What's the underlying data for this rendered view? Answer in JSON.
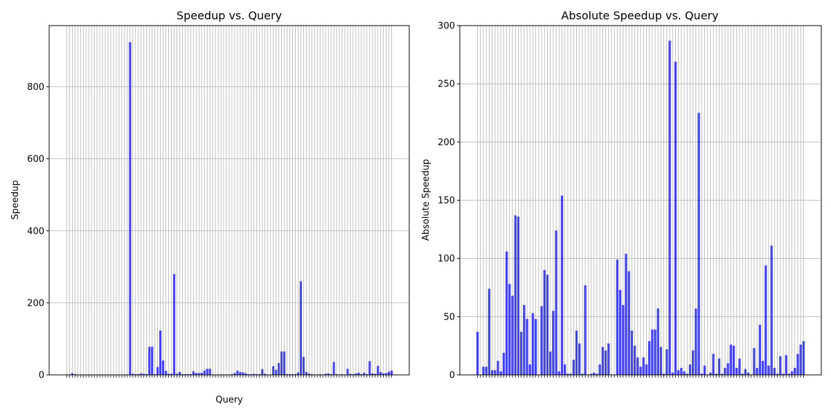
{
  "chart_data": [
    {
      "type": "bar",
      "title": "Speedup vs. Query",
      "xlabel": "Query",
      "ylabel": "Speedup",
      "ylim": [
        0,
        970
      ],
      "yticks": [
        0,
        200,
        400,
        600,
        800
      ],
      "grid": true,
      "bar_color": "#0000ff",
      "grid_color": "#b0b0b0",
      "values": [
        1,
        1,
        5,
        2,
        1,
        1,
        1,
        1,
        1,
        1,
        1,
        1,
        1,
        1,
        1,
        1,
        1,
        1,
        1,
        1,
        1,
        1,
        1,
        924,
        3,
        2,
        2,
        4,
        3,
        2,
        78,
        78,
        2,
        22,
        123,
        40,
        11,
        3,
        3,
        280,
        3,
        8,
        2,
        2,
        2,
        2,
        10,
        5,
        5,
        6,
        12,
        17,
        17,
        1,
        1,
        1,
        1,
        1,
        1,
        1,
        2,
        5,
        12,
        8,
        7,
        4,
        2,
        2,
        3,
        2,
        2,
        16,
        3,
        1,
        1,
        24,
        14,
        33,
        65,
        65,
        2,
        2,
        2,
        2,
        7,
        260,
        50,
        8,
        4,
        2,
        1,
        1,
        2,
        1,
        3,
        4,
        2,
        36,
        2,
        1,
        2,
        1,
        17,
        3,
        2,
        4,
        6,
        2,
        6,
        2,
        38,
        4,
        3,
        25,
        8,
        4,
        5,
        9,
        12
      ]
    },
    {
      "type": "bar",
      "title": "Absolute Speedup vs. Query",
      "xlabel": "",
      "ylabel": "Absolute Speedup",
      "ylim": [
        0,
        300
      ],
      "yticks": [
        0,
        50,
        100,
        150,
        200,
        250,
        300
      ],
      "grid": true,
      "bar_color": "#0000ff",
      "grid_color": "#b0b0b0",
      "values": [
        37,
        0,
        7,
        7,
        74,
        4,
        4,
        12,
        3,
        19,
        106,
        78,
        68,
        137,
        136,
        37,
        60,
        48,
        9,
        53,
        48,
        0,
        59,
        90,
        86,
        20,
        55,
        124,
        3,
        154,
        9,
        1,
        1,
        13,
        38,
        27,
        1,
        77,
        0,
        1,
        2,
        1,
        9,
        24,
        21,
        27,
        0,
        0,
        99,
        73,
        60,
        104,
        89,
        38,
        25,
        15,
        7,
        15,
        9,
        29,
        39,
        39,
        57,
        24,
        1,
        22,
        287,
        2,
        269,
        4,
        6,
        3,
        1,
        9,
        21,
        57,
        225,
        1,
        8,
        0,
        2,
        18,
        1,
        14,
        1,
        6,
        10,
        26,
        25,
        6,
        14,
        1,
        5,
        2,
        0,
        23,
        6,
        43,
        12,
        94,
        8,
        111,
        6,
        1,
        16,
        1,
        17,
        1,
        3,
        6,
        18,
        26,
        29
      ]
    }
  ]
}
